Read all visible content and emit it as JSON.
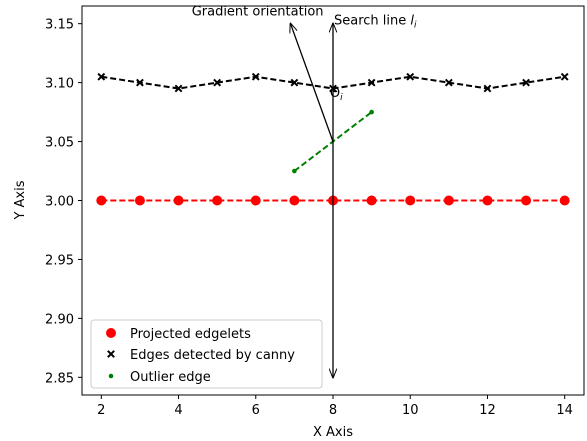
{
  "chart_data": {
    "type": "scatter",
    "xlabel": "X Axis",
    "ylabel": "Y Axis",
    "xlim": [
      1.5,
      14.5
    ],
    "ylim": [
      2.835,
      3.165
    ],
    "x_ticks": [
      2,
      4,
      6,
      8,
      10,
      12,
      14
    ],
    "y_ticks": [
      2.85,
      2.9,
      2.95,
      3.0,
      3.05,
      3.1,
      3.15
    ],
    "grid": false,
    "legend_position": "lower-left",
    "series": [
      {
        "name": "Projected edgelets",
        "marker": "circle",
        "line": "dashed",
        "color": "#ff0000",
        "x": [
          2,
          3,
          4,
          5,
          6,
          7,
          8,
          9,
          10,
          11,
          12,
          13,
          14
        ],
        "y": [
          3.0,
          3.0,
          3.0,
          3.0,
          3.0,
          3.0,
          3.0,
          3.0,
          3.0,
          3.0,
          3.0,
          3.0,
          3.0
        ]
      },
      {
        "name": "Edges detected by canny",
        "marker": "x",
        "line": "dashed",
        "color": "#000000",
        "x": [
          2,
          3,
          4,
          5,
          6,
          7,
          8,
          9,
          10,
          11,
          12,
          13,
          14
        ],
        "y": [
          3.105,
          3.1,
          3.095,
          3.1,
          3.105,
          3.1,
          3.095,
          3.1,
          3.105,
          3.1,
          3.095,
          3.1,
          3.105
        ]
      },
      {
        "name": "Outlier edge",
        "marker": "dot",
        "line": "dashed",
        "color": "#008000",
        "x": [
          7,
          9
        ],
        "y": [
          3.025,
          3.075
        ]
      }
    ],
    "annotations": [
      {
        "text": "Gradient orientation",
        "kind": "arrow",
        "from": [
          8,
          3.05
        ],
        "to": [
          6.9,
          3.15
        ]
      },
      {
        "text": "Search line",
        "subscript": "i",
        "kind": "double-arrow",
        "from": [
          8,
          2.85
        ],
        "to": [
          8,
          3.15
        ]
      },
      {
        "text": "Θ",
        "subscript": "i",
        "kind": "label",
        "at": [
          7.92,
          3.088
        ]
      }
    ]
  }
}
